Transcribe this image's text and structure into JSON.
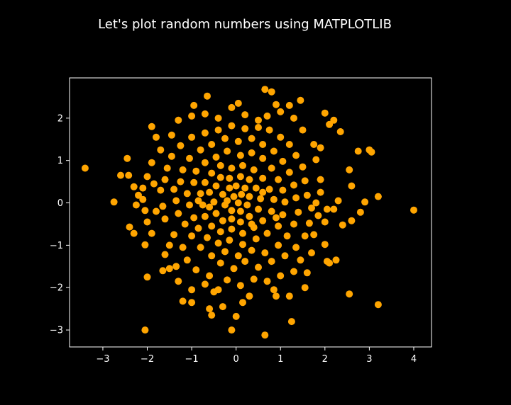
{
  "chart_data": {
    "type": "scatter",
    "title": "Let's plot random numbers using MATPLOTLIB",
    "xlabel": "",
    "ylabel": "",
    "xlim": [
      -3.75,
      4.4
    ],
    "ylim": [
      -3.4,
      2.95
    ],
    "x_ticks": [
      -3,
      -2,
      -1,
      0,
      1,
      2,
      3,
      4
    ],
    "y_ticks": [
      -3,
      -2,
      -1,
      0,
      1,
      2
    ],
    "x_tick_labels": [
      "−3",
      "−2",
      "−1",
      "0",
      "1",
      "2",
      "3",
      "4"
    ],
    "y_tick_labels": [
      "−3",
      "−2",
      "−1",
      "0",
      "1",
      "2"
    ],
    "grid": false,
    "colors": {
      "background": "#000000",
      "marker": "#ffa500",
      "axes": "#ffffff"
    },
    "series": [
      {
        "points": [
          [
            -3.4,
            0.82
          ],
          [
            -2.75,
            0.02
          ],
          [
            -2.6,
            0.65
          ],
          [
            -2.45,
            1.05
          ],
          [
            -2.42,
            0.65
          ],
          [
            -2.3,
            0.38
          ],
          [
            -2.4,
            -0.57
          ],
          [
            -2.3,
            -0.72
          ],
          [
            -2.05,
            -3.0
          ],
          [
            -2.0,
            -1.75
          ],
          [
            -2.05,
            -0.99
          ],
          [
            -1.2,
            -2.32
          ],
          [
            -1.0,
            -2.35
          ],
          [
            -0.6,
            -2.5
          ],
          [
            -0.55,
            -2.65
          ],
          [
            -0.3,
            -2.45
          ],
          [
            0.0,
            -2.68
          ],
          [
            -0.1,
            -3.0
          ],
          [
            0.65,
            -3.12
          ],
          [
            1.25,
            -2.8
          ],
          [
            0.65,
            2.68
          ],
          [
            0.8,
            2.62
          ],
          [
            -0.65,
            2.52
          ],
          [
            1.45,
            2.42
          ],
          [
            0.9,
            2.32
          ],
          [
            2.0,
            2.12
          ],
          [
            2.1,
            1.85
          ],
          [
            2.2,
            1.95
          ],
          [
            2.35,
            1.68
          ],
          [
            2.75,
            1.22
          ],
          [
            3.0,
            1.25
          ],
          [
            3.05,
            1.2
          ],
          [
            2.55,
            0.78
          ],
          [
            2.6,
            0.4
          ],
          [
            3.2,
            0.15
          ],
          [
            2.9,
            0.02
          ],
          [
            2.8,
            -0.22
          ],
          [
            4.0,
            -0.17
          ],
          [
            2.6,
            -0.42
          ],
          [
            2.4,
            -0.52
          ],
          [
            3.2,
            -2.4
          ],
          [
            2.55,
            -2.15
          ],
          [
            1.6,
            -1.65
          ],
          [
            1.55,
            -2.0
          ],
          [
            1.2,
            -2.2
          ],
          [
            0.9,
            -2.2
          ],
          [
            1.7,
            -1.18
          ],
          [
            2.05,
            -1.38
          ],
          [
            2.1,
            -1.42
          ],
          [
            2.0,
            -0.98
          ],
          [
            2.0,
            -0.45
          ],
          [
            2.05,
            -0.15
          ],
          [
            1.9,
            0.25
          ],
          [
            1.9,
            0.55
          ],
          [
            1.8,
            1.02
          ],
          [
            1.75,
            1.38
          ],
          [
            1.9,
            1.3
          ],
          [
            -1.9,
            1.8
          ],
          [
            -1.8,
            1.55
          ],
          [
            -1.7,
            1.25
          ],
          [
            -1.9,
            0.95
          ],
          [
            -2.0,
            0.62
          ],
          [
            -2.1,
            0.35
          ],
          [
            -2.1,
            0.08
          ],
          [
            -2.05,
            -0.18
          ],
          [
            -2.0,
            -0.45
          ],
          [
            -1.9,
            -0.72
          ],
          [
            -1.6,
            -1.22
          ],
          [
            -1.5,
            -1.55
          ],
          [
            -1.3,
            -1.85
          ],
          [
            -1.0,
            -2.05
          ],
          [
            -0.7,
            -1.92
          ],
          [
            -0.4,
            -2.05
          ],
          [
            -0.2,
            -1.82
          ],
          [
            0.1,
            -1.95
          ],
          [
            0.4,
            -1.8
          ],
          [
            0.7,
            -1.85
          ],
          [
            1.0,
            -1.72
          ],
          [
            1.3,
            -1.62
          ],
          [
            -1.3,
            1.95
          ],
          [
            -1.0,
            2.05
          ],
          [
            -0.7,
            2.1
          ],
          [
            -0.4,
            2.0
          ],
          [
            -0.1,
            2.25
          ],
          [
            0.2,
            2.08
          ],
          [
            0.5,
            1.95
          ],
          [
            0.7,
            2.05
          ],
          [
            1.0,
            2.15
          ],
          [
            1.3,
            2.0
          ],
          [
            1.5,
            1.72
          ],
          [
            -1.7,
            0.3
          ],
          [
            -1.65,
            -0.08
          ],
          [
            -1.6,
            -0.38
          ],
          [
            -1.4,
            -0.75
          ],
          [
            -1.2,
            -1.05
          ],
          [
            -1.1,
            -1.35
          ],
          [
            -0.9,
            -1.58
          ],
          [
            -0.6,
            -1.72
          ],
          [
            -0.35,
            -1.42
          ],
          [
            -0.05,
            -1.55
          ],
          [
            0.2,
            -1.38
          ],
          [
            0.5,
            -1.52
          ],
          [
            0.8,
            -1.38
          ],
          [
            1.1,
            -1.25
          ],
          [
            1.35,
            -1.05
          ],
          [
            1.55,
            -0.78
          ],
          [
            1.65,
            -0.48
          ],
          [
            1.7,
            -0.12
          ],
          [
            1.6,
            0.18
          ],
          [
            1.55,
            0.52
          ],
          [
            1.5,
            0.85
          ],
          [
            1.35,
            1.12
          ],
          [
            1.2,
            1.38
          ],
          [
            1.0,
            1.55
          ],
          [
            0.75,
            1.72
          ],
          [
            0.5,
            1.78
          ],
          [
            0.2,
            1.75
          ],
          [
            -0.1,
            1.82
          ],
          [
            -0.4,
            1.72
          ],
          [
            -0.7,
            1.65
          ],
          [
            -1.0,
            1.55
          ],
          [
            -1.25,
            1.35
          ],
          [
            -1.45,
            1.1
          ],
          [
            -1.55,
            0.82
          ],
          [
            -1.6,
            0.55
          ],
          [
            -1.4,
            0.32
          ],
          [
            -1.35,
            0.05
          ],
          [
            -1.3,
            -0.25
          ],
          [
            -1.15,
            -0.5
          ],
          [
            -1.0,
            -0.78
          ],
          [
            -0.8,
            -1.05
          ],
          [
            -0.55,
            -1.25
          ],
          [
            -0.25,
            -1.15
          ],
          [
            0.05,
            -1.25
          ],
          [
            0.35,
            -1.12
          ],
          [
            0.65,
            -1.18
          ],
          [
            0.95,
            -1.0
          ],
          [
            1.15,
            -0.78
          ],
          [
            1.3,
            -0.5
          ],
          [
            1.4,
            -0.22
          ],
          [
            1.35,
            0.12
          ],
          [
            1.3,
            0.42
          ],
          [
            1.2,
            0.72
          ],
          [
            1.05,
            0.98
          ],
          [
            0.85,
            1.22
          ],
          [
            0.6,
            1.38
          ],
          [
            0.35,
            1.52
          ],
          [
            0.05,
            1.45
          ],
          [
            -0.25,
            1.52
          ],
          [
            -0.55,
            1.38
          ],
          [
            -0.8,
            1.25
          ],
          [
            -1.05,
            1.05
          ],
          [
            -1.2,
            0.78
          ],
          [
            -1.25,
            0.5
          ],
          [
            -1.1,
            0.22
          ],
          [
            -1.05,
            -0.05
          ],
          [
            -0.95,
            -0.35
          ],
          [
            -0.85,
            -0.6
          ],
          [
            -0.65,
            -0.82
          ],
          [
            -0.4,
            -0.95
          ],
          [
            -0.15,
            -0.88
          ],
          [
            0.15,
            -0.98
          ],
          [
            0.45,
            -0.85
          ],
          [
            0.7,
            -0.72
          ],
          [
            0.95,
            -0.55
          ],
          [
            1.05,
            -0.28
          ],
          [
            1.1,
            0.02
          ],
          [
            1.05,
            0.3
          ],
          [
            0.95,
            0.55
          ],
          [
            0.8,
            0.82
          ],
          [
            0.6,
            1.05
          ],
          [
            0.35,
            1.18
          ],
          [
            0.1,
            1.12
          ],
          [
            -0.2,
            1.22
          ],
          [
            -0.45,
            1.08
          ],
          [
            -0.7,
            0.95
          ],
          [
            -0.9,
            0.75
          ],
          [
            -0.95,
            0.48
          ],
          [
            -0.8,
            0.22
          ],
          [
            -0.75,
            -0.05
          ],
          [
            -0.7,
            -0.32
          ],
          [
            -0.55,
            -0.55
          ],
          [
            -0.35,
            -0.68
          ],
          [
            -0.1,
            -0.62
          ],
          [
            0.15,
            -0.72
          ],
          [
            0.4,
            -0.58
          ],
          [
            0.6,
            -0.42
          ],
          [
            0.8,
            -0.2
          ],
          [
            0.85,
            0.08
          ],
          [
            0.75,
            0.32
          ],
          [
            0.6,
            0.58
          ],
          [
            0.4,
            0.78
          ],
          [
            0.15,
            0.88
          ],
          [
            -0.1,
            0.82
          ],
          [
            -0.35,
            0.88
          ],
          [
            -0.55,
            0.7
          ],
          [
            -0.7,
            0.48
          ],
          [
            -0.6,
            0.25
          ],
          [
            -0.5,
            0.02
          ],
          [
            -0.45,
            -0.25
          ],
          [
            -0.3,
            -0.42
          ],
          [
            -0.1,
            -0.38
          ],
          [
            0.1,
            -0.45
          ],
          [
            0.3,
            -0.32
          ],
          [
            0.5,
            -0.15
          ],
          [
            0.55,
            0.1
          ],
          [
            0.45,
            0.35
          ],
          [
            0.3,
            0.55
          ],
          [
            0.1,
            0.62
          ],
          [
            -0.15,
            0.58
          ],
          [
            -0.35,
            0.6
          ],
          [
            -0.45,
            0.4
          ],
          [
            -0.3,
            0.2
          ],
          [
            -0.25,
            -0.05
          ],
          [
            -0.1,
            -0.18
          ],
          [
            0.1,
            -0.2
          ],
          [
            0.25,
            -0.05
          ],
          [
            0.3,
            0.15
          ],
          [
            0.2,
            0.35
          ],
          [
            0.0,
            0.4
          ],
          [
            -0.15,
            0.35
          ],
          [
            -0.05,
            0.15
          ],
          [
            0.05,
            0.0
          ],
          [
            0.12,
            0.2
          ],
          [
            -0.6,
            -0.1
          ],
          [
            -0.2,
            0.05
          ],
          [
            0.35,
            -0.5
          ],
          [
            0.6,
            0.25
          ],
          [
            0.9,
            -0.35
          ],
          [
            -0.85,
            0.05
          ],
          [
            -1.5,
            -1.0
          ],
          [
            -1.8,
            -0.2
          ],
          [
            -1.85,
            0.45
          ],
          [
            1.8,
            0.0
          ],
          [
            1.85,
            -0.3
          ],
          [
            1.75,
            -0.75
          ],
          [
            2.2,
            -0.15
          ],
          [
            2.3,
            0.05
          ],
          [
            -2.25,
            -0.05
          ],
          [
            -2.2,
            0.18
          ],
          [
            1.45,
            -1.35
          ],
          [
            -1.45,
            1.6
          ],
          [
            -0.95,
            2.3
          ],
          [
            0.05,
            2.35
          ],
          [
            1.2,
            2.3
          ],
          [
            0.3,
            -2.2
          ],
          [
            -0.5,
            -2.1
          ],
          [
            0.15,
            -2.35
          ],
          [
            0.85,
            -2.05
          ],
          [
            -1.65,
            -1.6
          ],
          [
            -1.35,
            -1.5
          ],
          [
            2.25,
            -1.35
          ]
        ]
      }
    ]
  }
}
